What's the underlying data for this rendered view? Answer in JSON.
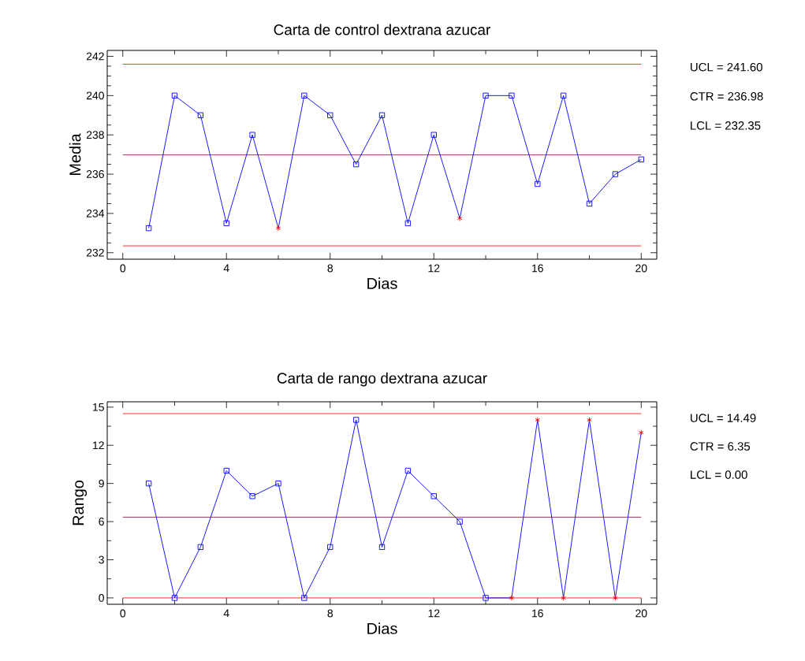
{
  "chart_data": [
    {
      "type": "line",
      "title": "Carta de control dextrana azucar",
      "xlabel": "Dias",
      "ylabel": "Media",
      "x": [
        1,
        2,
        3,
        4,
        5,
        6,
        7,
        8,
        9,
        10,
        11,
        12,
        13,
        14,
        15,
        16,
        17,
        18,
        19,
        20
      ],
      "xlim": [
        -0.6,
        20.6
      ],
      "xticks": [
        0,
        4,
        8,
        12,
        16,
        20
      ],
      "ylim": [
        231.67,
        242.3
      ],
      "yticks": [
        232,
        234,
        236,
        238,
        240,
        242
      ],
      "series": [
        {
          "type": "line",
          "color": "#0000ff",
          "marker": "none",
          "line_style": "solid",
          "values": [
            233.25,
            240,
            239,
            233.5,
            238,
            233.25,
            240,
            239,
            236.5,
            239,
            233.5,
            238,
            233.75,
            240,
            240,
            235.5,
            240,
            234.5,
            236,
            236.75
          ]
        },
        {
          "type": "scatter",
          "color": "#0000ff",
          "marker": "square",
          "values": [
            233.25,
            240,
            239,
            233.5,
            238,
            null,
            240,
            239,
            236.5,
            239,
            233.5,
            238,
            null,
            240,
            240,
            235.5,
            240,
            234.5,
            236,
            236.75
          ]
        },
        {
          "type": "scatter",
          "color": "#ff0000",
          "marker": "cross",
          "values": [
            null,
            null,
            null,
            null,
            null,
            233.25,
            null,
            null,
            null,
            null,
            null,
            null,
            233.75,
            null,
            null,
            null,
            null,
            null,
            null,
            null
          ]
        }
      ],
      "ref_lines": [
        {
          "axis": "y",
          "value": 241.6,
          "color": "#ff0000"
        },
        {
          "axis": "y",
          "value": 236.98,
          "color": "#800040"
        },
        {
          "axis": "y",
          "value": 232.35,
          "color": "#ff0000"
        }
      ],
      "annotations": [
        "UCL = 241.60",
        "CTR = 236.98",
        "LCL = 232.35"
      ]
    },
    {
      "type": "line",
      "title": "Carta de rango dextrana azucar",
      "xlabel": "Dias",
      "ylabel": "Rango",
      "x": [
        1,
        2,
        3,
        4,
        5,
        6,
        7,
        8,
        9,
        10,
        11,
        12,
        13,
        14,
        15,
        16,
        17,
        18,
        19,
        20
      ],
      "xlim": [
        -0.6,
        20.6
      ],
      "xticks": [
        0,
        4,
        8,
        12,
        16,
        20
      ],
      "ylim": [
        -0.5,
        15.42
      ],
      "yticks": [
        0,
        3,
        6,
        9,
        12,
        15
      ],
      "series": [
        {
          "type": "line",
          "color": "#0000ff",
          "marker": "none",
          "line_style": "solid",
          "values": [
            9,
            0,
            4,
            10,
            8,
            9,
            0,
            4,
            14,
            4,
            10,
            8,
            6,
            0,
            0,
            14,
            0,
            14,
            0,
            13
          ]
        },
        {
          "type": "scatter",
          "color": "#0000ff",
          "marker": "square",
          "values": [
            9,
            0,
            4,
            10,
            8,
            9,
            0,
            4,
            14,
            4,
            10,
            8,
            6,
            0,
            null,
            null,
            null,
            null,
            null,
            null
          ]
        },
        {
          "type": "scatter",
          "color": "#ff0000",
          "marker": "cross",
          "values": [
            null,
            null,
            null,
            null,
            null,
            null,
            null,
            null,
            null,
            null,
            null,
            null,
            null,
            null,
            0,
            14,
            0,
            14,
            0,
            13
          ]
        }
      ],
      "ref_lines": [
        {
          "axis": "y",
          "value": 14.49,
          "color": "#ff0000"
        },
        {
          "axis": "y",
          "value": 6.35,
          "color": "#800040"
        },
        {
          "axis": "y",
          "value": 0.0,
          "color": "#ff0000"
        }
      ],
      "annotations": [
        "UCL = 14.49",
        "CTR = 6.35",
        "LCL = 0.00"
      ]
    }
  ]
}
